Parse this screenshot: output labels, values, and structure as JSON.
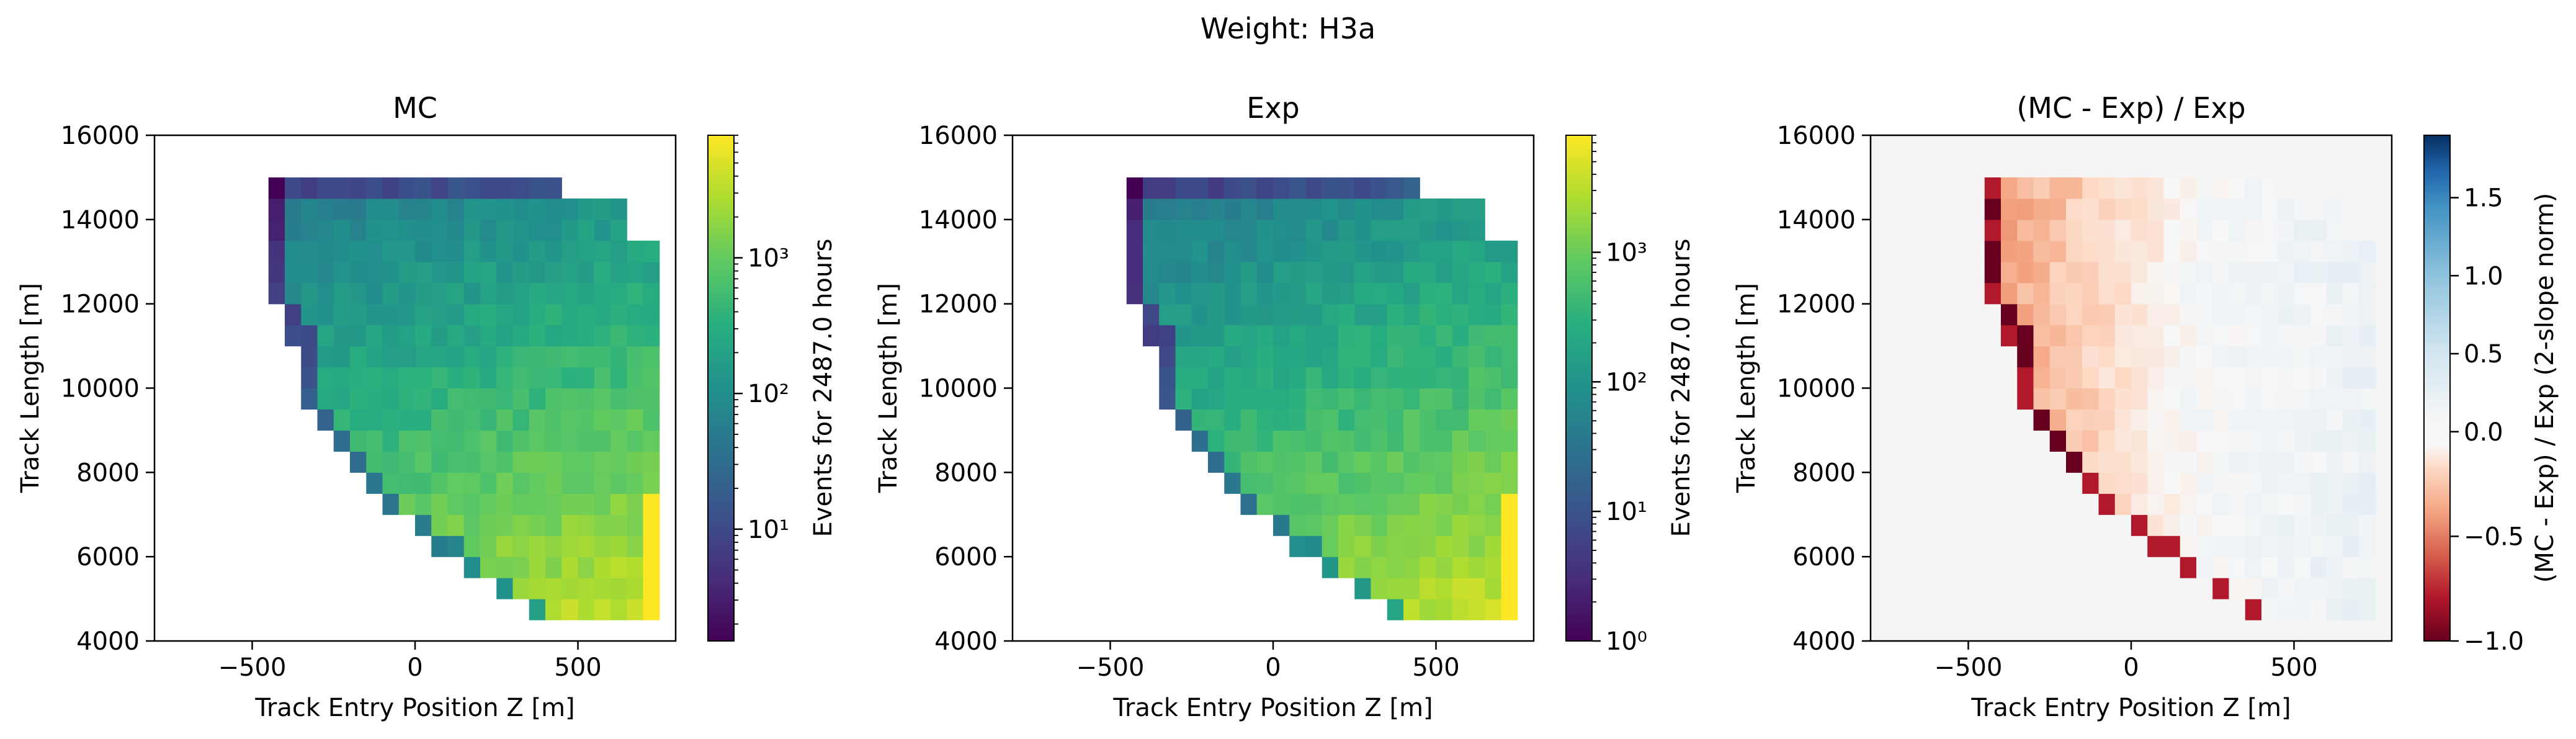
{
  "figure": {
    "suptitle": "Weight: H3a"
  },
  "chart_data": [
    {
      "type": "heatmap",
      "title": "MC",
      "xlabel": "Track Entry Position Z [m]",
      "ylabel": "Track Length [m]",
      "xlim": [
        -800,
        800
      ],
      "ylim": [
        4000,
        16000
      ],
      "xticks": [
        -500,
        0,
        500
      ],
      "xtick_labels": [
        "−500",
        "0",
        "500"
      ],
      "yticks": [
        4000,
        6000,
        8000,
        10000,
        12000,
        14000,
        16000
      ],
      "ytick_labels": [
        "4000",
        "6000",
        "8000",
        "10000",
        "12000",
        "14000",
        "16000"
      ],
      "colorbar": {
        "label": "Events for 2487.0 hours",
        "scale": "log",
        "colormap": "viridis",
        "range": [
          1.5,
          8000
        ],
        "ticks": [
          10,
          100,
          1000
        ],
        "tick_labels": [
          "10¹",
          "10²",
          "10³"
        ]
      },
      "grid": false
    },
    {
      "type": "heatmap",
      "title": "Exp",
      "xlabel": "Track Entry Position Z [m]",
      "ylabel": "Track Length [m]",
      "xlim": [
        -800,
        800
      ],
      "ylim": [
        4000,
        16000
      ],
      "xticks": [
        -500,
        0,
        500
      ],
      "xtick_labels": [
        "−500",
        "0",
        "500"
      ],
      "yticks": [
        4000,
        6000,
        8000,
        10000,
        12000,
        14000,
        16000
      ],
      "ytick_labels": [
        "4000",
        "6000",
        "8000",
        "10000",
        "12000",
        "14000",
        "16000"
      ],
      "colorbar": {
        "label": "Events for 2487.0 hours",
        "scale": "log",
        "colormap": "viridis",
        "range": [
          1,
          8000
        ],
        "ticks": [
          1,
          10,
          100,
          1000
        ],
        "tick_labels": [
          "10⁰",
          "10¹",
          "10²",
          "10³"
        ]
      },
      "grid": false
    },
    {
      "type": "heatmap",
      "title": "(MC - Exp) / Exp",
      "xlabel": "Track Entry Position Z [m]",
      "ylabel": "Track Length [m]",
      "xlim": [
        -800,
        800
      ],
      "ylim": [
        4000,
        16000
      ],
      "xticks": [
        -500,
        0,
        500
      ],
      "xtick_labels": [
        "−500",
        "0",
        "500"
      ],
      "yticks": [
        4000,
        6000,
        8000,
        10000,
        12000,
        14000,
        16000
      ],
      "ytick_labels": [
        "4000",
        "6000",
        "8000",
        "10000",
        "12000",
        "14000",
        "16000"
      ],
      "background": "#f5f5f5",
      "colorbar": {
        "label": "(MC - Exp) / Exp (2-slope norm)",
        "scale": "two-slope",
        "colormap": "RdBu",
        "range": [
          -1.0,
          1.9
        ],
        "center": 0,
        "ticks": [
          -1.0,
          -0.5,
          0.0,
          0.5,
          1.0,
          1.5
        ],
        "tick_labels": [
          "−1.0",
          "−0.5",
          "0.0",
          "0.5",
          "1.0",
          "1.5"
        ]
      },
      "grid": false
    }
  ],
  "bins": {
    "x_edges": [
      -800,
      800
    ],
    "x_count": 32,
    "y_edges": [
      4000,
      16000
    ],
    "y_count": 24
  }
}
